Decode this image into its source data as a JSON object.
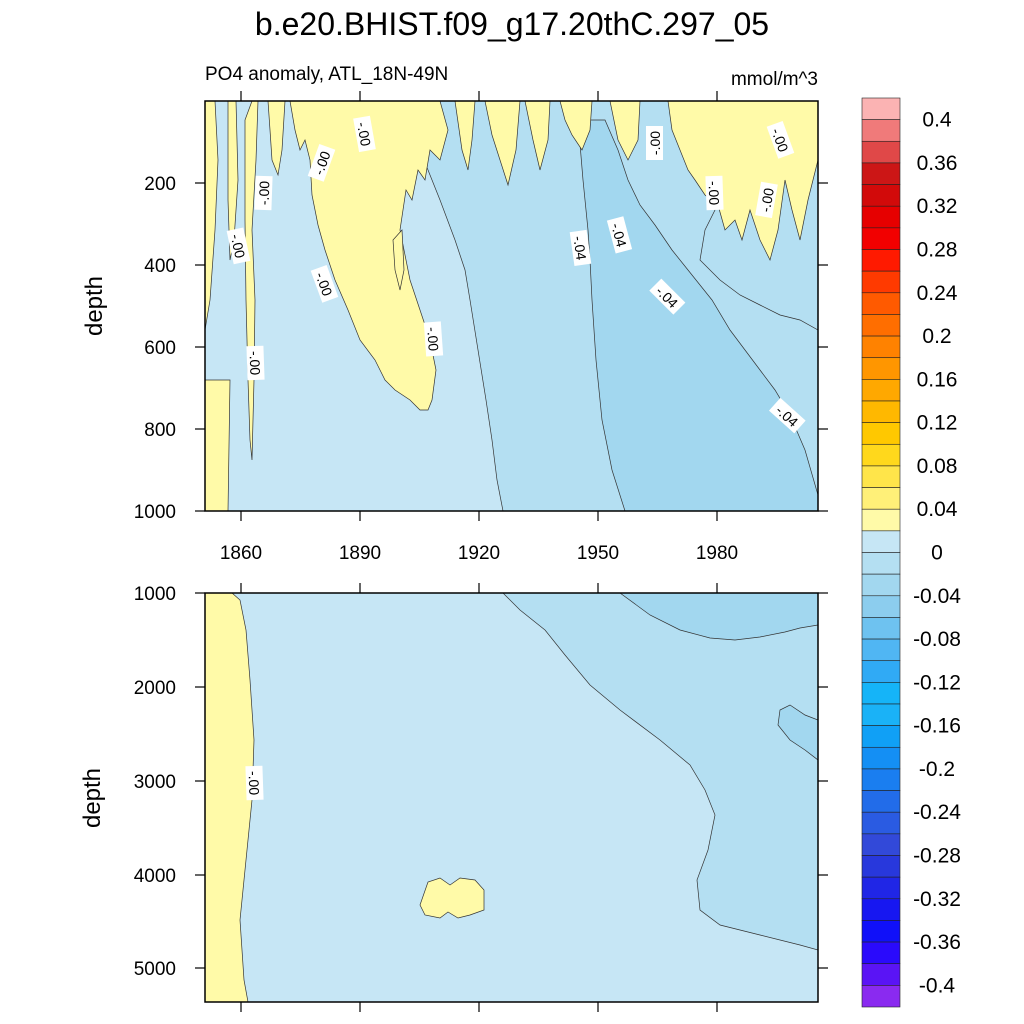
{
  "title": "b.e20.BHIST.f09_g17.20thC.297_05",
  "subtitle_left": "PO4 anomaly, ATL_18N-49N",
  "subtitle_right": "mmol/m^3",
  "chart_data": [
    {
      "type": "heatmap",
      "panel": "upper",
      "ylabel": "depth",
      "x_ticks": [
        1860,
        1890,
        1920,
        1950,
        1980
      ],
      "x_tick_labels": [
        "1860",
        "1890",
        "1920",
        "1950",
        "1980"
      ],
      "xlim": [
        1850,
        2005
      ],
      "y_ticks": [
        200,
        400,
        600,
        800,
        1000
      ],
      "y_tick_labels": [
        "200",
        "400",
        "600",
        "800",
        "1000"
      ],
      "ylim": [
        5,
        1000
      ],
      "y_reversed": true,
      "contour_labels": [
        "-.00",
        "-.00",
        "-.00",
        "-.00",
        "-.00",
        "-.00",
        "-.00",
        "-.00",
        "-.00",
        "-.00",
        "-.04",
        "-.04",
        "-.04",
        "-.04"
      ],
      "regions": [
        {
          "level": "0 to 0.04",
          "description": "positive anomaly: shallow streaks above ~300 m and a wedge 1875-1909 down to ~750 m"
        },
        {
          "level": "-0.04 to 0",
          "description": "background"
        },
        {
          "level": "-0.08 to -0.04",
          "description": "deepening band after ~1915"
        },
        {
          "level": "-0.08 to -0.04 (darker)",
          "description": "core after ~1945 below ~300 m"
        }
      ]
    },
    {
      "type": "heatmap",
      "panel": "lower",
      "ylabel": "depth",
      "x_ticks": [
        1860,
        1890,
        1920,
        1950,
        1980
      ],
      "xlim": [
        1850,
        2005
      ],
      "y_ticks": [
        1000,
        2000,
        3000,
        4000,
        5000
      ],
      "y_tick_labels": [
        "1000",
        "2000",
        "3000",
        "4000",
        "5000"
      ],
      "ylim": [
        1000,
        5350
      ],
      "y_reversed": true,
      "contour_labels": [
        "-.00"
      ],
      "regions": [
        {
          "level": "0 to 0.04",
          "description": "thin positive band 1850-1860 over all depths, small patch near 1905-1920 at ~4300 m"
        },
        {
          "level": "-0.04 to 0",
          "description": "background"
        },
        {
          "level": "-0.08 to -0.04",
          "description": "region after ~1925 spreading to depth"
        }
      ]
    }
  ],
  "colorbar": {
    "tick_labels": [
      "0.4",
      "0.36",
      "0.32",
      "0.28",
      "0.24",
      "0.2",
      "0.16",
      "0.12",
      "0.08",
      "0.04",
      "0",
      "-0.04",
      "-0.08",
      "-0.12",
      "-0.16",
      "-0.2",
      "-0.24",
      "-0.28",
      "-0.32",
      "-0.36",
      "-0.4"
    ],
    "colors": [
      "#fbb3b3",
      "#f07a7a",
      "#e04848",
      "#cc1616",
      "#d20a0a",
      "#e60000",
      "#f20000",
      "#ff1a00",
      "#ff3a00",
      "#ff5a00",
      "#ff6e00",
      "#ff8200",
      "#ff9600",
      "#ffa800",
      "#ffb800",
      "#ffc800",
      "#ffd81c",
      "#ffe54a",
      "#fff078",
      "#fffaa8",
      "#c6e6f5",
      "#b4dff2",
      "#a2d7ef",
      "#8ccdee",
      "#6ec2f0",
      "#50b6f3",
      "#30aaf5",
      "#15b4f8",
      "#1ab2f7",
      "#10a0f6",
      "#148ff4",
      "#1a7ef0",
      "#226ce9",
      "#2a5be2",
      "#3249d9",
      "#2838dc",
      "#2026e6",
      "#1717f1",
      "#1010f9",
      "#2a0afc",
      "#5a14f5",
      "#8a2af0"
    ],
    "levels": [
      -0.42,
      0.42
    ],
    "step": 0.02
  }
}
